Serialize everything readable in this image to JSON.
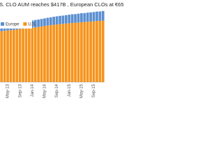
{
  "chart_data": {
    "type": "stacked-bar",
    "title": ".S. CLO AUM reaches $417B , European CLOs at €65",
    "categories": [
      null,
      null,
      "May-13",
      null,
      null,
      null,
      "Sep-13",
      null,
      null,
      null,
      "Jan-14",
      null,
      null,
      null,
      "May-14",
      null,
      null,
      null,
      "Sep-14",
      null,
      null,
      null,
      "Jan-15",
      null,
      null,
      null,
      "May-15",
      null,
      null,
      null,
      "Sep-15",
      null,
      null,
      null
    ],
    "series": [
      {
        "name": "Europe",
        "color": "#5b8fd0",
        "values": [
          44,
          44,
          45,
          45,
          46,
          46,
          47,
          47,
          48,
          48,
          49,
          50,
          50,
          51,
          52,
          53,
          53,
          54,
          55,
          56,
          56,
          57,
          58,
          59,
          59,
          60,
          61,
          61,
          62,
          63,
          63,
          64,
          64,
          65
        ]
      },
      {
        "name": "U.S.",
        "color": "#f7941d",
        "values": [
          345,
          348,
          350,
          352,
          355,
          357,
          360,
          362,
          364,
          366,
          369,
          371,
          374,
          377,
          380,
          383,
          386,
          389,
          391,
          393,
          395,
          397,
          399,
          401,
          402,
          404,
          406,
          407,
          409,
          410,
          412,
          414,
          415,
          417
        ]
      }
    ],
    "ylim": [
      0,
      500
    ]
  }
}
